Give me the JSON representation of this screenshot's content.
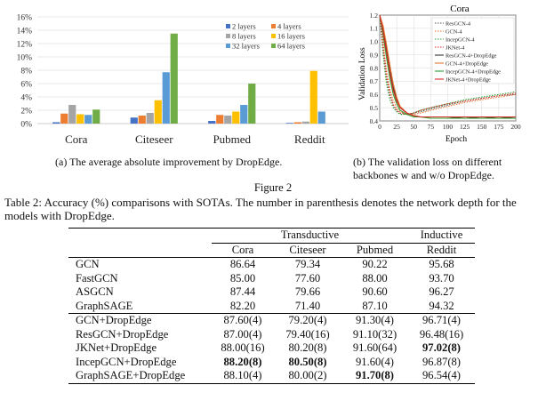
{
  "figure": {
    "label": "Figure 2",
    "left_caption": "(a) The average absolute improvement by DropEdge.",
    "right_caption": "(b) The validation loss on different backbones w and w/o DropEdge."
  },
  "table_section": {
    "caption": "Table 2: Accuracy (%) comparisons with SOTAs. The number in parenthesis denotes the network depth for the models with DropEdge.",
    "group_headers": [
      "Transductive",
      "Inductive"
    ],
    "columns": [
      "Cora",
      "Citeseer",
      "Pubmed",
      "Reddit"
    ],
    "rows": [
      {
        "name": "GCN",
        "cells": [
          "86.64",
          "79.34",
          "90.22",
          "95.68"
        ],
        "bold": [
          false,
          false,
          false,
          false
        ]
      },
      {
        "name": "FastGCN",
        "cells": [
          "85.00",
          "77.60",
          "88.00",
          "93.70"
        ],
        "bold": [
          false,
          false,
          false,
          false
        ]
      },
      {
        "name": "ASGCN",
        "cells": [
          "87.44",
          "79.66",
          "90.60",
          "96.27"
        ],
        "bold": [
          false,
          false,
          false,
          false
        ]
      },
      {
        "name": "GraphSAGE",
        "cells": [
          "82.20",
          "71.40",
          "87.10",
          "94.32"
        ],
        "bold": [
          false,
          false,
          false,
          false
        ]
      },
      {
        "name": "GCN+DropEdge",
        "cells": [
          "87.60(4)",
          "79.20(4)",
          "91.30(4)",
          "96.71(4)"
        ],
        "bold": [
          false,
          false,
          false,
          false
        ]
      },
      {
        "name": "ResGCN+DropEdge",
        "cells": [
          "87.00(4)",
          "79.40(16)",
          "91.10(32)",
          "96.48(16)"
        ],
        "bold": [
          false,
          false,
          false,
          false
        ]
      },
      {
        "name": "JKNet+DropEdge",
        "cells": [
          "88.00(16)",
          "80.20(8)",
          "91.60(64)",
          "97.02(8)"
        ],
        "bold": [
          false,
          false,
          false,
          true
        ]
      },
      {
        "name": "IncepGCN+DropEdge",
        "cells": [
          "88.20(8)",
          "80.50(8)",
          "91.60(4)",
          "96.87(8)"
        ],
        "bold": [
          true,
          true,
          false,
          false
        ]
      },
      {
        "name": "GraphSAGE+DropEdge",
        "cells": [
          "88.10(4)",
          "80.00(2)",
          "91.70(8)",
          "96.54(4)"
        ],
        "bold": [
          false,
          false,
          true,
          false
        ]
      }
    ]
  },
  "chart_data": [
    {
      "type": "bar",
      "categories": [
        "Cora",
        "Citeseer",
        "Pubmed",
        "Reddit"
      ],
      "series": [
        {
          "name": "2 layers",
          "color": "#4472c4",
          "values": [
            0.2,
            0.9,
            0.4,
            0.1
          ]
        },
        {
          "name": "4 layers",
          "color": "#ed7d31",
          "values": [
            1.5,
            1.2,
            1.3,
            0.2
          ]
        },
        {
          "name": "8 layers",
          "color": "#a5a5a5",
          "values": [
            2.8,
            1.6,
            1.2,
            0.3
          ]
        },
        {
          "name": "16 layers",
          "color": "#ffc000",
          "values": [
            1.4,
            3.5,
            1.8,
            7.9
          ]
        },
        {
          "name": "32 layers",
          "color": "#5b9bd5",
          "values": [
            1.3,
            7.7,
            2.8,
            1.8
          ]
        },
        {
          "name": "64 layers",
          "color": "#70ad47",
          "values": [
            2.1,
            13.5,
            6.0,
            0.0
          ]
        }
      ],
      "ylim": [
        0,
        16
      ],
      "yticks": [
        "0%",
        "2%",
        "4%",
        "6%",
        "8%",
        "10%",
        "12%",
        "14%",
        "16%"
      ],
      "grid": true,
      "legend": "top-right"
    },
    {
      "type": "line",
      "title": "Cora",
      "xlabel": "Epoch",
      "ylabel": "Validation Loss",
      "xlim": [
        0,
        200
      ],
      "ylim": [
        0.4,
        1.2
      ],
      "xticks": [
        "0",
        "25",
        "50",
        "75",
        "100",
        "125",
        "150",
        "175",
        "200"
      ],
      "yticks": [
        "0.4",
        "0.5",
        "0.6",
        "0.7",
        "0.8",
        "0.9",
        "1.0",
        "1.1",
        "1.2"
      ],
      "legend": "top-right",
      "series": [
        {
          "name": "ResGCN-4",
          "color": "#555555",
          "dash": "1.5,1.5",
          "x": [
            0,
            5,
            10,
            15,
            20,
            25,
            30,
            40,
            50,
            60,
            75,
            100,
            125,
            150,
            175,
            200
          ],
          "y": [
            1.2,
            0.95,
            0.72,
            0.6,
            0.52,
            0.48,
            0.46,
            0.45,
            0.46,
            0.47,
            0.49,
            0.52,
            0.55,
            0.57,
            0.59,
            0.6
          ]
        },
        {
          "name": "GCN-4",
          "color": "#e8772e",
          "dash": "1.5,1.5",
          "x": [
            0,
            5,
            10,
            15,
            20,
            25,
            30,
            40,
            50,
            60,
            75,
            100,
            125,
            150,
            175,
            200
          ],
          "y": [
            1.2,
            1.0,
            0.78,
            0.64,
            0.55,
            0.5,
            0.47,
            0.45,
            0.45,
            0.46,
            0.48,
            0.51,
            0.54,
            0.56,
            0.58,
            0.6
          ]
        },
        {
          "name": "IncepGCN-4",
          "color": "#2ca02c",
          "dash": "1.5,1.5",
          "x": [
            0,
            5,
            10,
            15,
            20,
            25,
            30,
            40,
            50,
            60,
            75,
            100,
            125,
            150,
            175,
            200
          ],
          "y": [
            1.2,
            0.9,
            0.68,
            0.56,
            0.5,
            0.47,
            0.45,
            0.45,
            0.46,
            0.48,
            0.5,
            0.53,
            0.56,
            0.58,
            0.6,
            0.62
          ]
        },
        {
          "name": "JKNet-4",
          "color": "#d62728",
          "dash": "1.5,1.5",
          "x": [
            0,
            5,
            10,
            15,
            20,
            25,
            30,
            40,
            50,
            60,
            75,
            100,
            125,
            150,
            175,
            200
          ],
          "y": [
            1.2,
            0.96,
            0.74,
            0.6,
            0.52,
            0.48,
            0.46,
            0.45,
            0.46,
            0.48,
            0.5,
            0.53,
            0.55,
            0.57,
            0.59,
            0.61
          ]
        },
        {
          "name": "ResGCN-4+DropEdge",
          "color": "#333333",
          "dash": "",
          "x": [
            0,
            5,
            10,
            15,
            20,
            25,
            30,
            40,
            50,
            60,
            75,
            100,
            125,
            150,
            175,
            200
          ],
          "y": [
            1.2,
            1.1,
            0.95,
            0.78,
            0.65,
            0.56,
            0.5,
            0.46,
            0.44,
            0.43,
            0.43,
            0.43,
            0.42,
            0.43,
            0.42,
            0.43
          ]
        },
        {
          "name": "GCN-4+DropEdge",
          "color": "#e8772e",
          "dash": "",
          "x": [
            0,
            5,
            10,
            15,
            20,
            25,
            30,
            40,
            50,
            60,
            75,
            100,
            125,
            150,
            175,
            200
          ],
          "y": [
            1.2,
            1.12,
            0.98,
            0.82,
            0.68,
            0.58,
            0.51,
            0.46,
            0.44,
            0.43,
            0.42,
            0.42,
            0.42,
            0.42,
            0.42,
            0.42
          ]
        },
        {
          "name": "IncepGCN-4+DropEdge",
          "color": "#2ca02c",
          "dash": "",
          "x": [
            0,
            5,
            10,
            15,
            20,
            25,
            30,
            40,
            50,
            60,
            75,
            100,
            125,
            150,
            175,
            200
          ],
          "y": [
            1.2,
            1.05,
            0.88,
            0.72,
            0.6,
            0.53,
            0.48,
            0.45,
            0.43,
            0.43,
            0.42,
            0.42,
            0.42,
            0.42,
            0.42,
            0.42
          ]
        },
        {
          "name": "JKNet-4+DropEdge",
          "color": "#d62728",
          "dash": "",
          "x": [
            0,
            5,
            10,
            15,
            20,
            25,
            30,
            40,
            50,
            60,
            75,
            100,
            125,
            150,
            175,
            200
          ],
          "y": [
            1.2,
            1.08,
            0.92,
            0.76,
            0.63,
            0.55,
            0.5,
            0.46,
            0.44,
            0.43,
            0.43,
            0.43,
            0.43,
            0.43,
            0.43,
            0.43
          ]
        }
      ]
    }
  ]
}
